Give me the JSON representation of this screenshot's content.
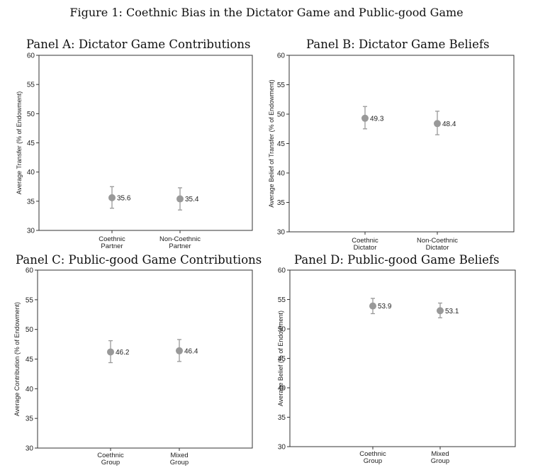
{
  "figure_title": "Figure 1: Coethnic Bias in the Dictator Game and Public-good Game",
  "panels": [
    {
      "title": "Panel A: Dictator Game Contributions"
    },
    {
      "title": "Panel B: Dictator Game Beliefs"
    },
    {
      "title": "Panel C: Public-good Game Contributions"
    },
    {
      "title": "Panel D: Public-good Game Beliefs"
    }
  ],
  "chart_data": [
    {
      "type": "scatter",
      "title": "Panel A: Dictator Game Contributions",
      "ylabel": "Average Transfer (% of Endowment)",
      "xlabel": "",
      "ylim": [
        30,
        60
      ],
      "yticks": [
        30,
        35,
        40,
        45,
        50,
        55,
        60
      ],
      "categories": [
        [
          "Coethnic",
          "Partner"
        ],
        [
          "Non-Coethnic",
          "Partner"
        ]
      ],
      "values": [
        35.6,
        35.4
      ],
      "data_labels": [
        "35.6",
        "35.4"
      ],
      "ci_lower": [
        33.8,
        33.5
      ],
      "ci_upper": [
        37.5,
        37.3
      ],
      "marker_color": "#999999",
      "grid": false
    },
    {
      "type": "scatter",
      "title": "Panel B: Dictator Game Beliefs",
      "ylabel": "Average Belief of Transfer (% of Endowment)",
      "xlabel": "",
      "ylim": [
        30,
        60
      ],
      "yticks": [
        30,
        35,
        40,
        45,
        50,
        55,
        60
      ],
      "categories": [
        [
          "Coethnic",
          "Dictator"
        ],
        [
          "Non-Coethnic",
          "Dictator"
        ]
      ],
      "values": [
        49.3,
        48.4
      ],
      "data_labels": [
        "49.3",
        "48.4"
      ],
      "ci_lower": [
        47.5,
        46.5
      ],
      "ci_upper": [
        51.3,
        50.5
      ],
      "marker_color": "#999999",
      "grid": false
    },
    {
      "type": "scatter",
      "title": "Panel C: Public-good Game Contributions",
      "ylabel": "Average Contribution (% of Endowment)",
      "xlabel": "",
      "ylim": [
        30,
        60
      ],
      "yticks": [
        30,
        35,
        40,
        45,
        50,
        55,
        60
      ],
      "categories": [
        [
          "Coethnic",
          "Group"
        ],
        [
          "Mixed",
          "Group"
        ]
      ],
      "values": [
        46.2,
        46.4
      ],
      "data_labels": [
        "46.2",
        "46.4"
      ],
      "ci_lower": [
        44.4,
        44.6
      ],
      "ci_upper": [
        48.1,
        48.3
      ],
      "marker_color": "#999999",
      "grid": false
    },
    {
      "type": "scatter",
      "title": "Panel D: Public-good Game Beliefs",
      "ylabel": "Average Belief (% of Endowment)",
      "xlabel": "",
      "ylim": [
        30,
        60
      ],
      "yticks": [
        30,
        35,
        40,
        45,
        50,
        55,
        60
      ],
      "categories": [
        [
          "Coethnic",
          "Group"
        ],
        [
          "Mixed",
          "Group"
        ]
      ],
      "values": [
        53.9,
        53.1
      ],
      "data_labels": [
        "53.9",
        "53.1"
      ],
      "ci_lower": [
        52.6,
        51.9
      ],
      "ci_upper": [
        55.2,
        54.4
      ],
      "marker_color": "#999999",
      "grid": false
    }
  ]
}
